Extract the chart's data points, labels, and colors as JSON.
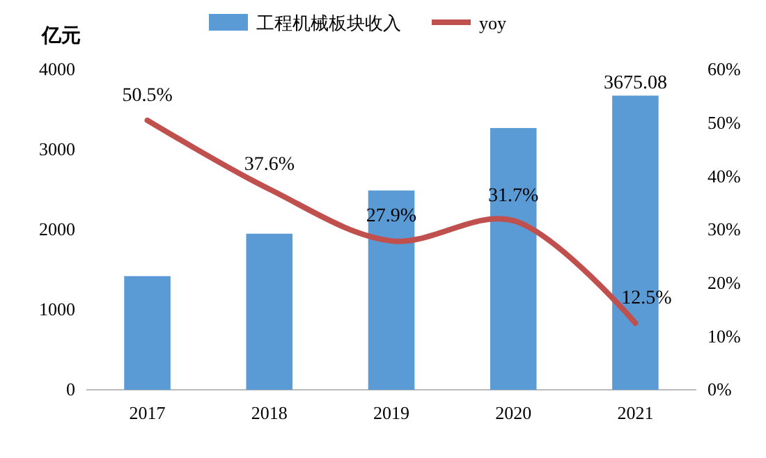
{
  "chart_data": {
    "type": "bar",
    "categories": [
      "2017",
      "2018",
      "2019",
      "2020",
      "2021"
    ],
    "ylabel": "亿元",
    "ylim": [
      0,
      4000
    ],
    "yticks": [
      0,
      1000,
      2000,
      3000,
      4000
    ],
    "y2lim": [
      0,
      60
    ],
    "y2ticks": [
      {
        "value": 0,
        "label": "0%"
      },
      {
        "value": 10,
        "label": "10%"
      },
      {
        "value": 20,
        "label": "20%"
      },
      {
        "value": 30,
        "label": "30%"
      },
      {
        "value": 40,
        "label": "40%"
      },
      {
        "value": 50,
        "label": "50%"
      },
      {
        "value": 60,
        "label": "60%"
      }
    ],
    "legend": "top",
    "grid": false,
    "series": [
      {
        "name": "工程机械板块收入",
        "color": "#5b9bd5",
        "values": [
          1420,
          1950,
          2490,
          3270,
          3675.08
        ],
        "value_labels": [
          null,
          null,
          null,
          null,
          "3675.08"
        ]
      },
      {
        "name": "yoy",
        "type": "line",
        "axis": "y2",
        "color": "#c0504d",
        "values": [
          50.5,
          37.6,
          27.9,
          31.7,
          12.5
        ],
        "value_labels": [
          "50.5%",
          "37.6%",
          "27.9%",
          "31.7%",
          "12.5%"
        ]
      }
    ]
  }
}
